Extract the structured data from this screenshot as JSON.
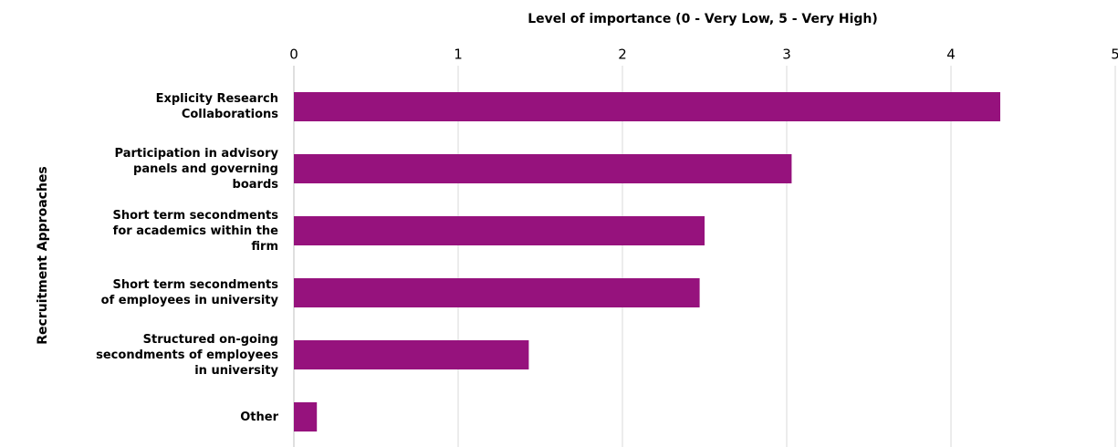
{
  "chart_data": {
    "type": "barh",
    "x_label": "Level of importance (0 - Very Low, 5 - Very High)",
    "y_label": "Recruitment Approaches",
    "categories": [
      "Explicity Research Collaborations",
      "Participation in advisory panels and governing boards",
      "Short term secondments for academics within the firm",
      "Short term secondments of employees in university",
      "Structured on-going secondments of employees in university",
      "Other"
    ],
    "values": [
      4.3,
      3.03,
      2.5,
      2.47,
      1.43,
      0.14
    ],
    "color": "#96127d",
    "xlim": [
      0,
      5
    ],
    "xticks": [
      0,
      1,
      2,
      3,
      4,
      5
    ],
    "grid": true
  }
}
